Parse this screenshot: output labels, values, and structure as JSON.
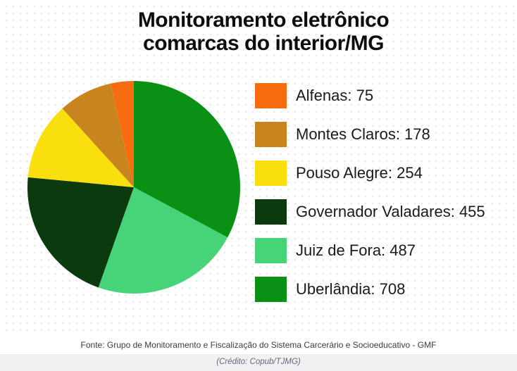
{
  "title": {
    "line1": "Monitoramento eletrônico",
    "line2": "comarcas do interior/MG"
  },
  "chart_data": {
    "type": "pie",
    "title": "Monitoramento eletrônico comarcas do interior/MG",
    "categories": [
      "Alfenas",
      "Montes Claros",
      "Pouso Alegre",
      "Governador Valadares",
      "Juiz de Fora",
      "Uberlândia"
    ],
    "values": [
      75,
      178,
      254,
      455,
      487,
      708
    ],
    "colors": [
      "#f76c0e",
      "#c8841e",
      "#f9df0d",
      "#0b3a0e",
      "#47d478",
      "#0a9115"
    ],
    "legend_position": "right",
    "legend_label_format": "{category}: {value}",
    "start_angle_deg": 0,
    "draw_order": "reverse-of-legend, clockwise from 12 o'clock"
  },
  "footer": {
    "source": "Fonte: Grupo de Monitoramento e Fiscalização do Sistema Carcerário e Socioeducativo - GMF",
    "credit": "(Crédito: Copub/TJMG)"
  }
}
